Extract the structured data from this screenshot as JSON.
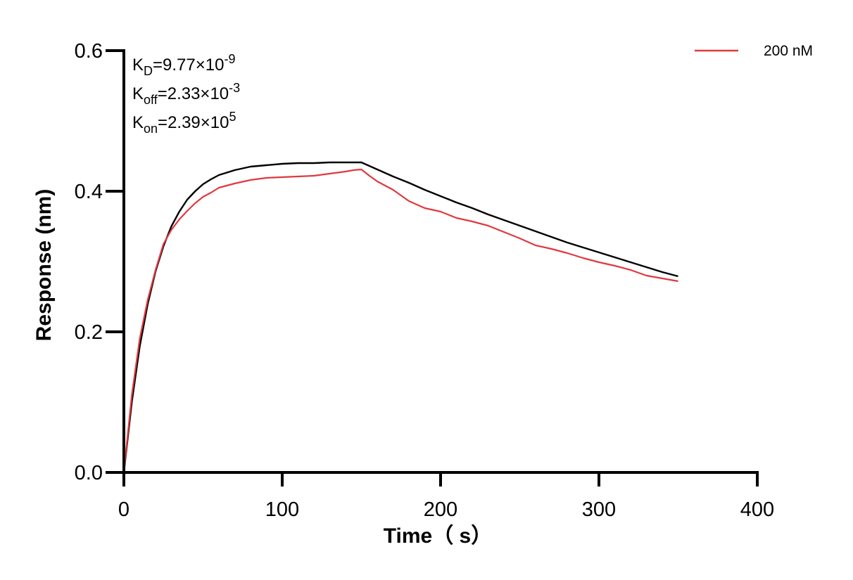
{
  "chart_data": {
    "type": "line",
    "title": "",
    "xlabel": "Time（ s）",
    "ylabel": "Response (nm)",
    "xlim": [
      0,
      400
    ],
    "ylim": [
      0,
      0.6
    ],
    "x_ticks": [
      0,
      100,
      200,
      300,
      400
    ],
    "x_tick_labels": [
      "0",
      "100",
      "200",
      "300",
      "400"
    ],
    "y_ticks": [
      0,
      0.2,
      0.4,
      0.6
    ],
    "y_tick_labels": [
      "0.0",
      "0.2",
      "0.4",
      "0.6"
    ],
    "grid": false,
    "legend_position": "top-right",
    "annotations": [
      {
        "base": "K",
        "sub": "D",
        "value": "=9.77×10",
        "exp": "-9"
      },
      {
        "base": "K",
        "sub": "off",
        "value": "=2.33×10",
        "exp": "-3"
      },
      {
        "base": "K",
        "sub": "on",
        "value": "=2.39×10",
        "exp": "5"
      }
    ],
    "series": [
      {
        "name": "200 nM",
        "color": "#e0393e",
        "x": [
          0,
          5,
          10,
          15,
          20,
          25,
          30,
          35,
          40,
          45,
          50,
          55,
          60,
          70,
          80,
          90,
          100,
          110,
          120,
          130,
          140,
          145,
          150,
          155,
          160,
          170,
          180,
          190,
          200,
          210,
          220,
          230,
          240,
          250,
          260,
          270,
          280,
          290,
          300,
          310,
          320,
          330,
          340,
          350
        ],
        "y": [
          0.0,
          0.11,
          0.19,
          0.245,
          0.288,
          0.325,
          0.345,
          0.36,
          0.372,
          0.383,
          0.392,
          0.398,
          0.405,
          0.411,
          0.416,
          0.419,
          0.42,
          0.421,
          0.422,
          0.425,
          0.428,
          0.43,
          0.431,
          0.422,
          0.414,
          0.402,
          0.386,
          0.376,
          0.371,
          0.362,
          0.357,
          0.351,
          0.342,
          0.333,
          0.323,
          0.318,
          0.312,
          0.305,
          0.299,
          0.294,
          0.288,
          0.28,
          0.276,
          0.272
        ]
      },
      {
        "name": "",
        "color": "#000000",
        "x": [
          0,
          5,
          10,
          15,
          20,
          25,
          30,
          35,
          40,
          45,
          50,
          55,
          60,
          70,
          80,
          90,
          100,
          110,
          120,
          130,
          140,
          150,
          160,
          170,
          180,
          190,
          200,
          210,
          220,
          230,
          240,
          250,
          260,
          270,
          280,
          290,
          300,
          310,
          320,
          330,
          340,
          350
        ],
        "y": [
          0.0,
          0.1,
          0.179,
          0.239,
          0.286,
          0.322,
          0.35,
          0.371,
          0.388,
          0.4,
          0.41,
          0.417,
          0.423,
          0.43,
          0.435,
          0.437,
          0.439,
          0.44,
          0.44,
          0.441,
          0.441,
          0.441,
          0.431,
          0.421,
          0.412,
          0.402,
          0.393,
          0.384,
          0.376,
          0.367,
          0.359,
          0.351,
          0.343,
          0.335,
          0.327,
          0.32,
          0.313,
          0.306,
          0.299,
          0.292,
          0.285,
          0.279
        ]
      }
    ]
  }
}
